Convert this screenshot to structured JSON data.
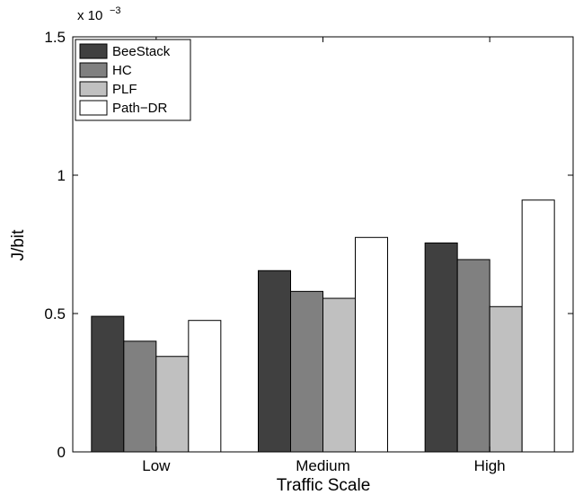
{
  "chart_data": {
    "type": "bar",
    "title": "",
    "xlabel": "Traffic Scale",
    "ylabel": "J/bit",
    "categories": [
      "Low",
      "Medium",
      "High"
    ],
    "ylim": [
      0,
      1.5
    ],
    "y_ticks": [
      0,
      0.5,
      1,
      1.5
    ],
    "y_tick_labels": [
      "0",
      "0.5",
      "1",
      "1.5"
    ],
    "y_exponent_base": "x 10",
    "y_exponent_power": "−3",
    "legend_position": "top-left",
    "grid": false,
    "series": [
      {
        "name": "BeeStack",
        "color": "#404040",
        "values": [
          0.49,
          0.655,
          0.755
        ]
      },
      {
        "name": "HC",
        "color": "#808080",
        "values": [
          0.4,
          0.58,
          0.695
        ]
      },
      {
        "name": "PLF",
        "color": "#c0c0c0",
        "values": [
          0.345,
          0.555,
          0.525
        ]
      },
      {
        "name": "Path−DR",
        "color": "#ffffff",
        "values": [
          0.475,
          0.775,
          0.91
        ]
      }
    ]
  }
}
